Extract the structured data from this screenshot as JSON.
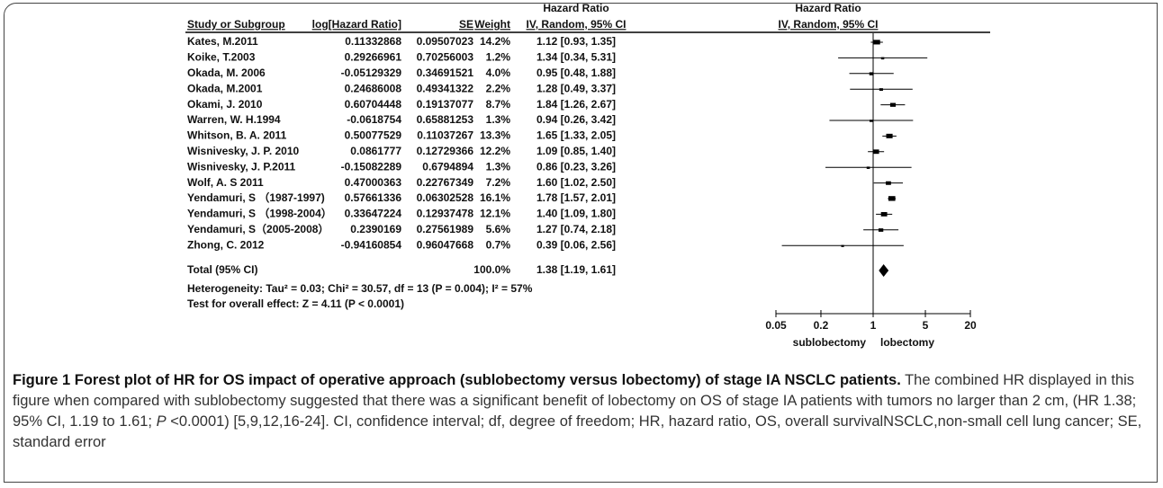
{
  "chart_data": {
    "type": "forest",
    "headers": {
      "study": "Study or Subgroup",
      "log_hr": "log[Hazard Ratio]",
      "se": "SE",
      "weight": "Weight",
      "hr_title": "Hazard Ratio",
      "hr_method": "IV, Random, 95% CI",
      "plot_title": "Hazard Ratio",
      "plot_method": "IV, Random, 95% CI"
    },
    "studies": [
      {
        "name": "Kates, M.2011",
        "log_hr": 0.11332868,
        "se": 0.09507023,
        "weight": 14.2,
        "weight_label": "14.2%",
        "hr": 1.12,
        "ci_low": 0.93,
        "ci_high": 1.35,
        "hr_label": "1.12 [0.93, 1.35]"
      },
      {
        "name": "Koike, T.2003",
        "log_hr": 0.29266961,
        "se": 0.70256003,
        "weight": 1.2,
        "weight_label": "1.2%",
        "hr": 1.34,
        "ci_low": 0.34,
        "ci_high": 5.31,
        "hr_label": "1.34 [0.34, 5.31]"
      },
      {
        "name": "Okada, M. 2006",
        "log_hr": -0.05129329,
        "se": 0.34691521,
        "weight": 4.0,
        "weight_label": "4.0%",
        "hr": 0.95,
        "ci_low": 0.48,
        "ci_high": 1.88,
        "hr_label": "0.95 [0.48, 1.88]"
      },
      {
        "name": "Okada, M.2001",
        "log_hr": 0.24686008,
        "se": 0.49341322,
        "weight": 2.2,
        "weight_label": "2.2%",
        "hr": 1.28,
        "ci_low": 0.49,
        "ci_high": 3.37,
        "hr_label": "1.28 [0.49, 3.37]"
      },
      {
        "name": "Okami, J. 2010",
        "log_hr": 0.60704448,
        "se": 0.19137077,
        "weight": 8.7,
        "weight_label": "8.7%",
        "hr": 1.84,
        "ci_low": 1.26,
        "ci_high": 2.67,
        "hr_label": "1.84 [1.26, 2.67]"
      },
      {
        "name": "Warren, W. H.1994",
        "log_hr": -0.0618754,
        "se": 0.65881253,
        "weight": 1.3,
        "weight_label": "1.3%",
        "hr": 0.94,
        "ci_low": 0.26,
        "ci_high": 3.42,
        "hr_label": "0.94 [0.26, 3.42]"
      },
      {
        "name": "Whitson, B. A. 2011",
        "log_hr": 0.50077529,
        "se": 0.11037267,
        "weight": 13.3,
        "weight_label": "13.3%",
        "hr": 1.65,
        "ci_low": 1.33,
        "ci_high": 2.05,
        "hr_label": "1.65 [1.33, 2.05]"
      },
      {
        "name": "Wisnivesky, J. P. 2010",
        "log_hr": 0.0861777,
        "se": 0.12729366,
        "weight": 12.2,
        "weight_label": "12.2%",
        "hr": 1.09,
        "ci_low": 0.85,
        "ci_high": 1.4,
        "hr_label": "1.09 [0.85, 1.40]"
      },
      {
        "name": "Wisnivesky, J. P.2011",
        "log_hr": -0.15082289,
        "se": 0.6794894,
        "weight": 1.3,
        "weight_label": "1.3%",
        "hr": 0.86,
        "ci_low": 0.23,
        "ci_high": 3.26,
        "hr_label": "0.86 [0.23, 3.26]"
      },
      {
        "name": "Wolf, A. S 2011",
        "log_hr": 0.47000363,
        "se": 0.22767349,
        "weight": 7.2,
        "weight_label": "7.2%",
        "hr": 1.6,
        "ci_low": 1.02,
        "ci_high": 2.5,
        "hr_label": "1.60 [1.02, 2.50]"
      },
      {
        "name": "Yendamuri, S （1987-1997)",
        "log_hr": 0.57661336,
        "se": 0.06302528,
        "weight": 16.1,
        "weight_label": "16.1%",
        "hr": 1.78,
        "ci_low": 1.57,
        "ci_high": 2.01,
        "hr_label": "1.78 [1.57, 2.01]"
      },
      {
        "name": "Yendamuri, S （1998-2004）",
        "log_hr": 0.33647224,
        "se": 0.12937478,
        "weight": 12.1,
        "weight_label": "12.1%",
        "hr": 1.4,
        "ci_low": 1.09,
        "ci_high": 1.8,
        "hr_label": "1.40 [1.09, 1.80]"
      },
      {
        "name": "Yendamuri, S（2005-2008）",
        "log_hr": 0.2390169,
        "se": 0.27561989,
        "weight": 5.6,
        "weight_label": "5.6%",
        "hr": 1.27,
        "ci_low": 0.74,
        "ci_high": 2.18,
        "hr_label": "1.27 [0.74, 2.18]"
      },
      {
        "name": "Zhong, C. 2012",
        "log_hr": -0.94160854,
        "se": 0.96047668,
        "weight": 0.7,
        "weight_label": "0.7%",
        "hr": 0.39,
        "ci_low": 0.06,
        "ci_high": 2.56,
        "hr_label": "0.39 [0.06, 2.56]"
      }
    ],
    "total": {
      "name": "Total (95% CI)",
      "weight": 100.0,
      "weight_label": "100.0%",
      "hr": 1.38,
      "ci_low": 1.19,
      "ci_high": 1.61,
      "hr_label": "1.38 [1.19, 1.61]"
    },
    "heterogeneity": "Heterogeneity: Tau² = 0.03; Chi² = 30.57, df = 13 (P = 0.004); I² = 57%",
    "overall_effect": "Test for overall effect: Z = 4.11 (P < 0.0001)",
    "xscale": "log",
    "xlim": [
      0.05,
      20
    ],
    "xticks": [
      0.05,
      0.2,
      1,
      5,
      20
    ],
    "reference": 1,
    "favours_left": "sublobectomy",
    "favours_right": "lobectomy",
    "color": "#000000"
  },
  "caption": {
    "title": "Figure 1 Forest plot of HR for OS impact of operative approach (sublobectomy versus lobectomy) of stage IA NSCLC patients.",
    "body_1": " The combined HR displayed in this figure when compared with sublobectomy suggested that there was a significant benefit of lobectomy on OS of stage IA patients with tumors no larger than 2 cm, (HR 1.38; 95% CI, 1.19 to 1.61; ",
    "body_italic": "P",
    "body_2": " <0.0001) [5,9,12,16-24]. CI, confidence interval; df, degree of freedom; HR, hazard ratio, OS, overall survivalNSCLC,non-small cell lung cancer; SE, standard error"
  }
}
